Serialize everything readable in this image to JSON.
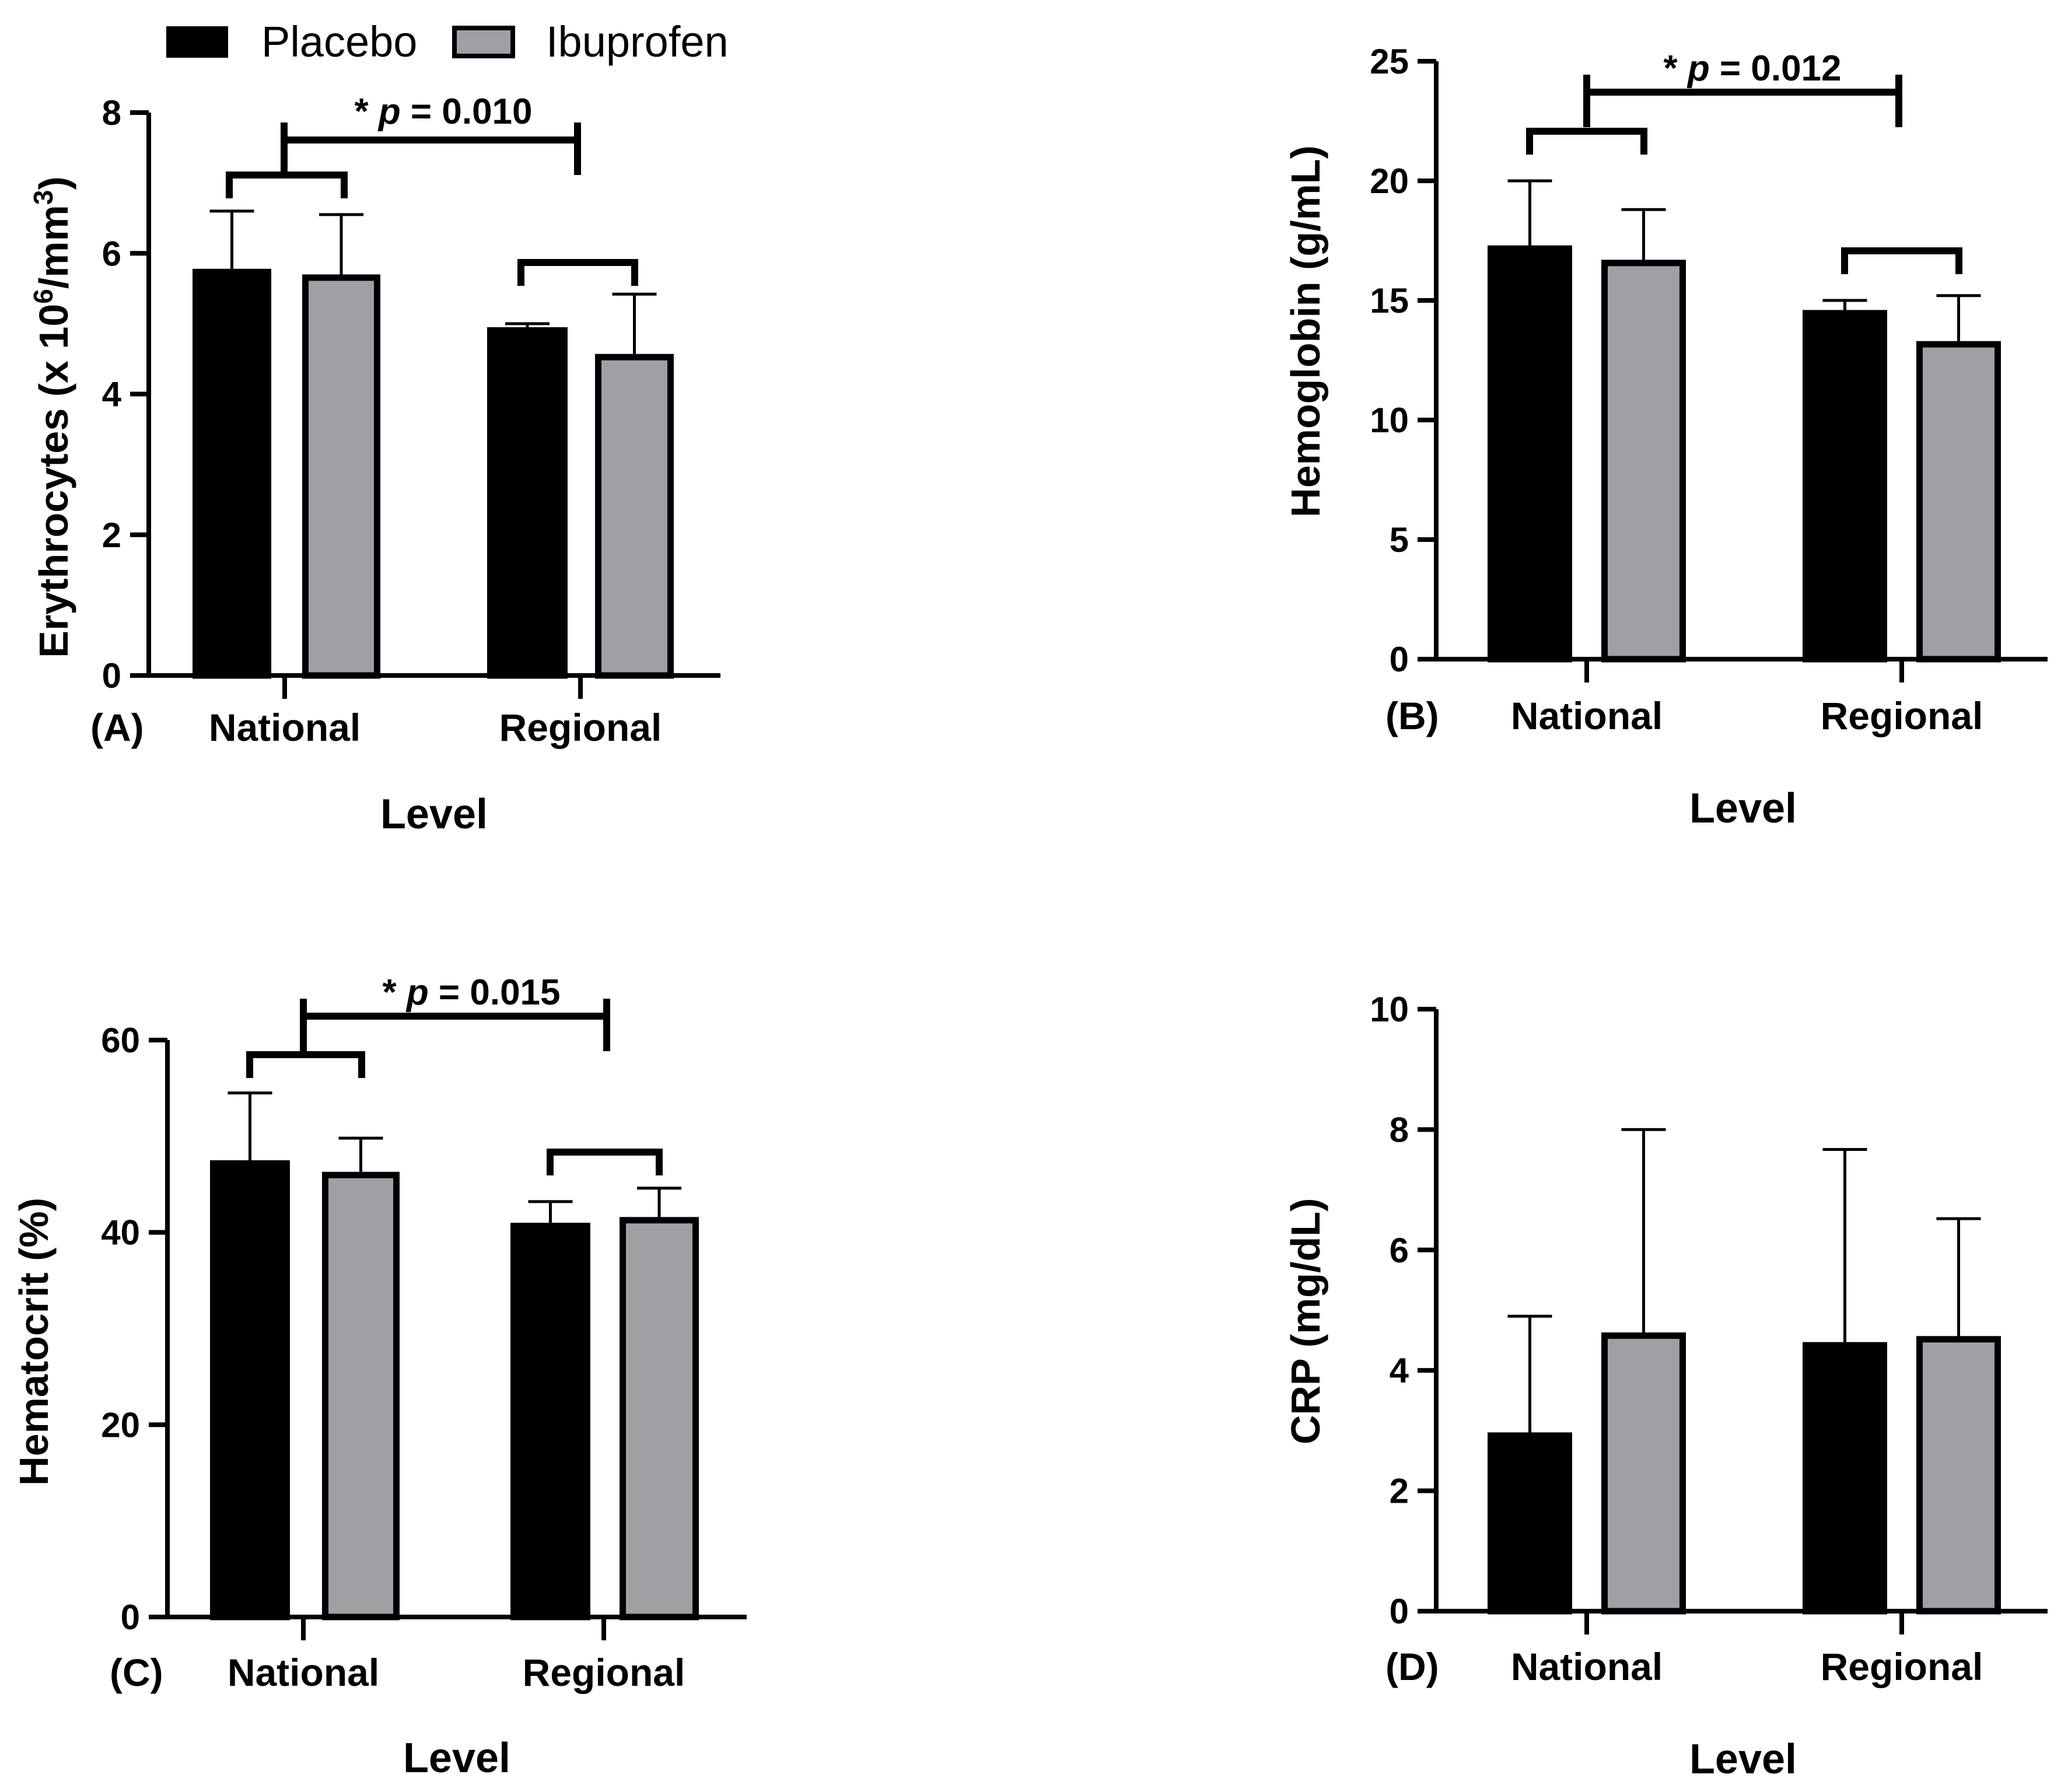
{
  "legend": {
    "placebo_label": "Placebo",
    "ibuprofen_label": "Ibuprofen"
  },
  "colors": {
    "placebo": "#000000",
    "ibuprofen": "#a0a0a4",
    "outline": "#000000"
  },
  "chart_data": [
    {
      "panel_label": "(A)",
      "type": "bar",
      "ylabel_main": "Erythrocytes (x 10",
      "ylabel_sup1": "6",
      "ylabel_mid": "/mm",
      "ylabel_sup2": "3",
      "ylabel_end": ")",
      "xlabel": "Level",
      "categories": [
        "National",
        "Regional"
      ],
      "series": [
        {
          "name": "Placebo",
          "values": [
            5.78,
            4.95
          ],
          "errors": [
            0.82,
            0.05
          ]
        },
        {
          "name": "Ibuprofen",
          "values": [
            5.7,
            4.57
          ],
          "errors": [
            0.85,
            0.85
          ]
        }
      ],
      "ylim": [
        0,
        8
      ],
      "yticks": [
        "0",
        "2",
        "4",
        "6",
        "8"
      ],
      "significance": {
        "star": "* ",
        "p": "p",
        "rest": " = 0.010"
      }
    },
    {
      "panel_label": "(B)",
      "type": "bar",
      "ylabel": "Hemoglobin (g/mL)",
      "xlabel": "Level",
      "categories": [
        "National",
        "Regional"
      ],
      "series": [
        {
          "name": "Placebo",
          "values": [
            17.3,
            14.6
          ],
          "errors": [
            2.7,
            0.4
          ]
        },
        {
          "name": "Ibuprofen",
          "values": [
            16.7,
            13.3
          ],
          "errors": [
            2.1,
            1.9
          ]
        }
      ],
      "ylim": [
        0,
        25
      ],
      "yticks": [
        "0",
        "5",
        "10",
        "15",
        "20",
        "25"
      ],
      "significance": {
        "star": "* ",
        "p": "p",
        "rest": " = 0.012"
      }
    },
    {
      "panel_label": "(C)",
      "type": "bar",
      "ylabel": "Hematocrit (%)",
      "xlabel": "Level",
      "categories": [
        "National",
        "Regional"
      ],
      "series": [
        {
          "name": "Placebo",
          "values": [
            47.5,
            41.0
          ],
          "errors": [
            7.0,
            2.2
          ]
        },
        {
          "name": "Ibuprofen",
          "values": [
            46.3,
            41.6
          ],
          "errors": [
            3.5,
            3.0
          ]
        }
      ],
      "ylim": [
        0,
        60
      ],
      "yticks": [
        "0",
        "20",
        "40",
        "60"
      ],
      "significance": {
        "star": "* ",
        "p": "p",
        "rest": " = 0.015"
      }
    },
    {
      "panel_label": "(D)",
      "type": "bar",
      "ylabel": "CRP (mg/dL)",
      "xlabel": "Level",
      "categories": [
        "National",
        "Regional"
      ],
      "series": [
        {
          "name": "Placebo",
          "values": [
            2.97,
            4.47
          ],
          "errors": [
            1.93,
            3.2
          ]
        },
        {
          "name": "Ibuprofen",
          "values": [
            4.63,
            4.57
          ],
          "errors": [
            3.37,
            1.95
          ]
        }
      ],
      "ylim": [
        0,
        10
      ],
      "yticks": [
        "0",
        "2",
        "4",
        "6",
        "8",
        "10"
      ]
    }
  ]
}
